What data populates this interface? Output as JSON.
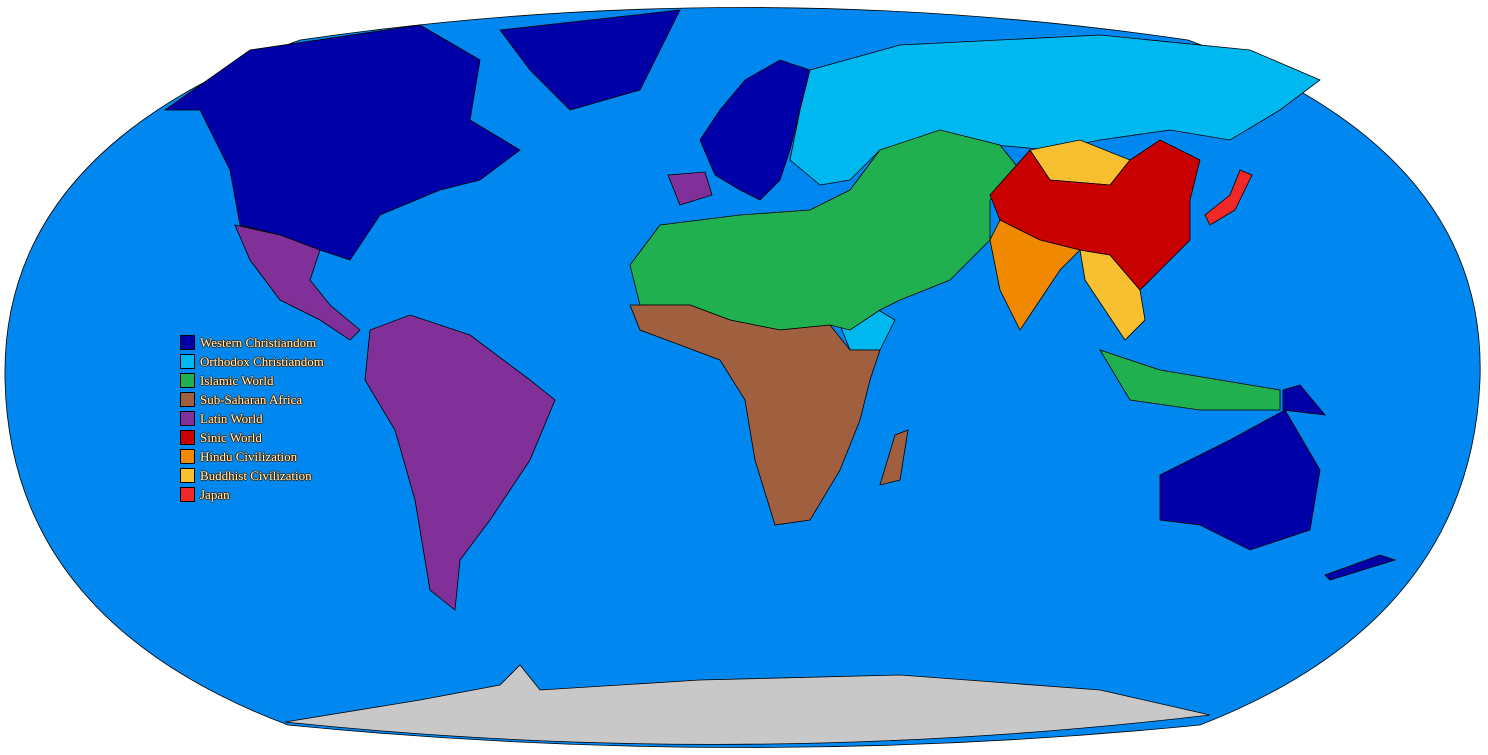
{
  "colors": {
    "ocean": "#0088f0",
    "antarctica": "#c8c8c8",
    "western": "#0000a8",
    "orthodox": "#00b8f0",
    "islamic": "#20b050",
    "subsaharan": "#a06040",
    "latin": "#803098",
    "sinic": "#c80000",
    "hindu": "#f08800",
    "buddhist": "#f8c030",
    "japan": "#f02828"
  },
  "legend": [
    {
      "label": "Western Christiandom",
      "key": "western"
    },
    {
      "label": "Orthodox Christiandom",
      "key": "orthodox"
    },
    {
      "label": "Islamic World",
      "key": "islamic"
    },
    {
      "label": "Sub-Saharan Africa",
      "key": "subsaharan"
    },
    {
      "label": "Latin World",
      "key": "latin"
    },
    {
      "label": "Sinic World",
      "key": "sinic"
    },
    {
      "label": "Hindu Civilization",
      "key": "hindu"
    },
    {
      "label": "Buddhist Civilization",
      "key": "buddhist"
    },
    {
      "label": "Japan",
      "key": "japan"
    }
  ]
}
